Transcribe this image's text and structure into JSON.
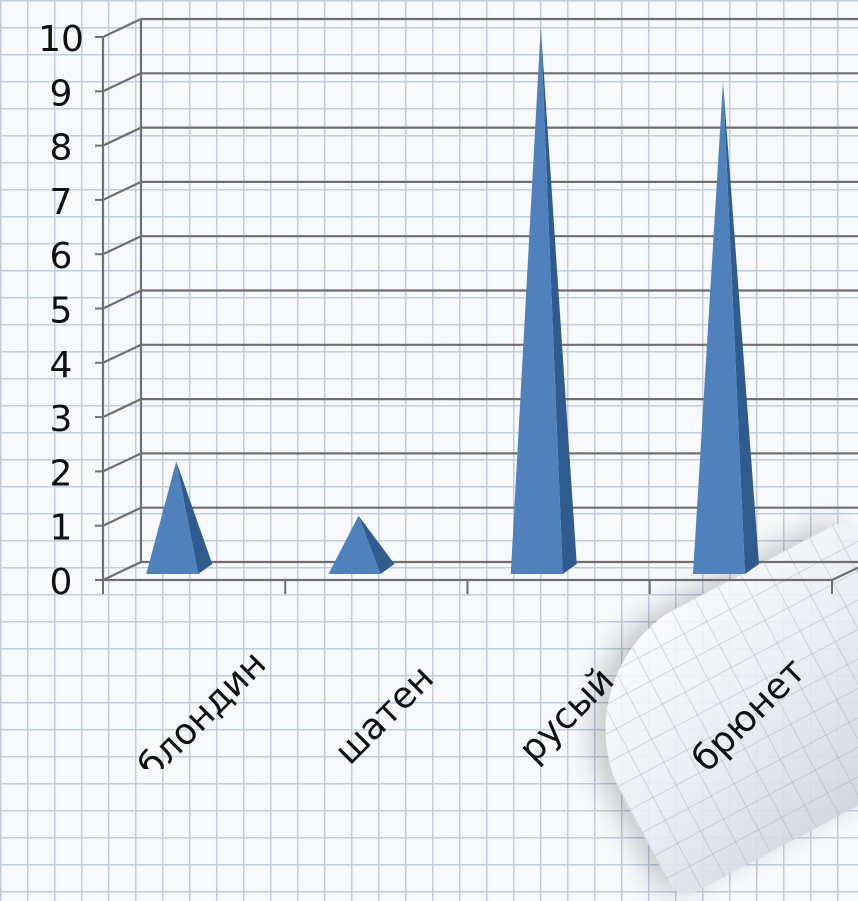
{
  "chart_data": {
    "type": "bar",
    "bar_shape": "pyramid",
    "categories": [
      "блондин",
      "шатен",
      "русый",
      "брюнет"
    ],
    "values": [
      2,
      1,
      10,
      9
    ],
    "title": "",
    "xlabel": "",
    "ylabel": "",
    "ylim": [
      0,
      10
    ],
    "yticks": [
      "0",
      "1",
      "2",
      "3",
      "4",
      "5",
      "6",
      "7",
      "8",
      "9",
      "10"
    ],
    "grid": true,
    "legend": "none",
    "bar_color": "#4f81bd",
    "bar_shadow_color": "#2f5b8f"
  }
}
